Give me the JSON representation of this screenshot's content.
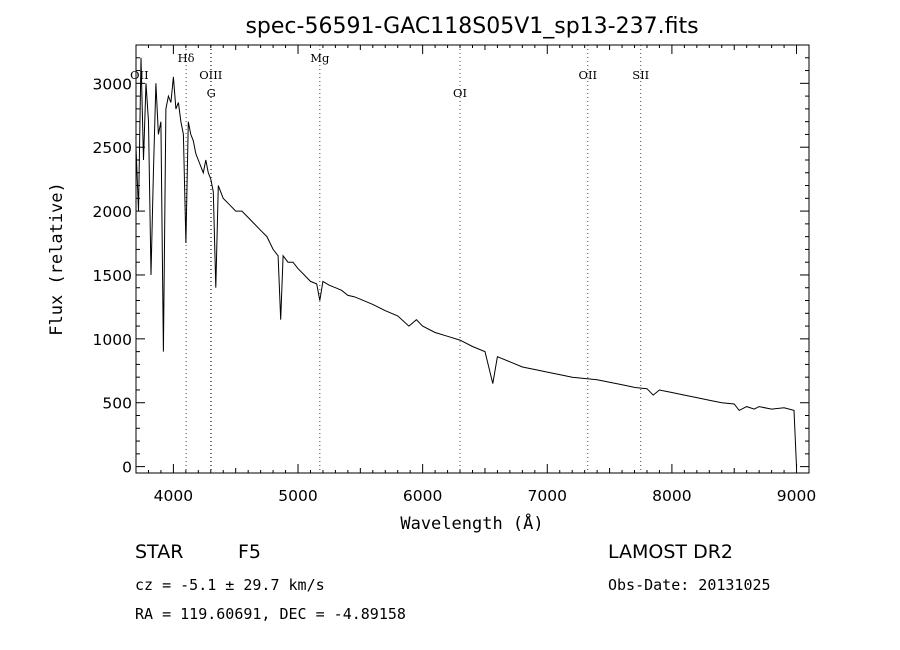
{
  "chart_data": {
    "type": "line",
    "title": "spec-56591-GAC118S05V1_sp13-237.fits",
    "xlabel": "Wavelength (Å)",
    "ylabel": "Flux (relative)",
    "xlim": [
      3700,
      9100
    ],
    "ylim": [
      -50,
      3300
    ],
    "xticks": [
      4000,
      5000,
      6000,
      7000,
      8000,
      9000
    ],
    "yticks": [
      0,
      500,
      1000,
      1500,
      2000,
      2500,
      3000
    ],
    "grid": false,
    "legend": "none",
    "series": [
      {
        "x": [
          3700,
          3720,
          3740,
          3760,
          3780,
          3800,
          3820,
          3840,
          3860,
          3880,
          3900,
          3920,
          3940,
          3960,
          3980,
          4000,
          4020,
          4040,
          4060,
          4080,
          4100,
          4120,
          4140,
          4160,
          4180,
          4200,
          4220,
          4240,
          4260,
          4280,
          4300,
          4320,
          4340,
          4360,
          4380,
          4400,
          4450,
          4500,
          4550,
          4600,
          4650,
          4700,
          4750,
          4800,
          4840,
          4861,
          4880,
          4920,
          4960,
          5000,
          5050,
          5100,
          5150,
          5175,
          5200,
          5250,
          5300,
          5350,
          5400,
          5450,
          5500,
          5600,
          5700,
          5800,
          5890,
          5950,
          6000,
          6100,
          6200,
          6300,
          6400,
          6500,
          6563,
          6600,
          6700,
          6800,
          6900,
          7000,
          7100,
          7200,
          7300,
          7400,
          7500,
          7600,
          7700,
          7800,
          7850,
          7900,
          8000,
          8100,
          8200,
          8300,
          8400,
          8500,
          8540,
          8600,
          8660,
          8700,
          8800,
          8900,
          8980,
          9000
        ],
        "y": [
          2500,
          2000,
          3200,
          2400,
          3000,
          2700,
          1500,
          2300,
          3000,
          2600,
          2700,
          900,
          2800,
          2900,
          2850,
          3050,
          2800,
          2850,
          2700,
          2600,
          1750,
          2700,
          2600,
          2550,
          2450,
          2400,
          2350,
          2300,
          2400,
          2300,
          2250,
          2150,
          1400,
          2200,
          2150,
          2100,
          2050,
          2000,
          2000,
          1950,
          1900,
          1850,
          1800,
          1700,
          1650,
          1150,
          1650,
          1600,
          1600,
          1550,
          1500,
          1450,
          1430,
          1300,
          1450,
          1420,
          1400,
          1380,
          1340,
          1330,
          1310,
          1270,
          1220,
          1180,
          1100,
          1150,
          1100,
          1050,
          1020,
          990,
          940,
          900,
          650,
          860,
          820,
          780,
          760,
          740,
          720,
          700,
          690,
          680,
          660,
          640,
          620,
          610,
          560,
          600,
          580,
          560,
          540,
          520,
          500,
          490,
          440,
          470,
          450,
          470,
          450,
          460,
          440,
          0
        ]
      }
    ],
    "spectral_lines": [
      {
        "label": "OII",
        "x": 3727,
        "dotted": false,
        "row": 2
      },
      {
        "label": "Hδ",
        "x": 4102,
        "dotted": true,
        "row": 1
      },
      {
        "label": "OIII",
        "x": 4300,
        "dotted": true,
        "row": 2
      },
      {
        "label": "G",
        "x": 4304,
        "dotted": true,
        "row": 3
      },
      {
        "label": "Mg",
        "x": 5175,
        "dotted": true,
        "row": 1
      },
      {
        "label": "OI",
        "x": 6300,
        "dotted": true,
        "row": 3
      },
      {
        "label": "OII",
        "x": 7325,
        "dotted": true,
        "row": 2
      },
      {
        "label": "SII",
        "x": 7750,
        "dotted": true,
        "row": 2
      }
    ]
  },
  "info": {
    "class_label": "STAR",
    "subclass": "F5",
    "survey": "LAMOST DR2",
    "cz": "cz = -5.1 ± 29.7 km/s",
    "obs_date": "Obs-Date: 20131025",
    "coords": "RA = 119.60691, DEC =  -4.89158"
  }
}
